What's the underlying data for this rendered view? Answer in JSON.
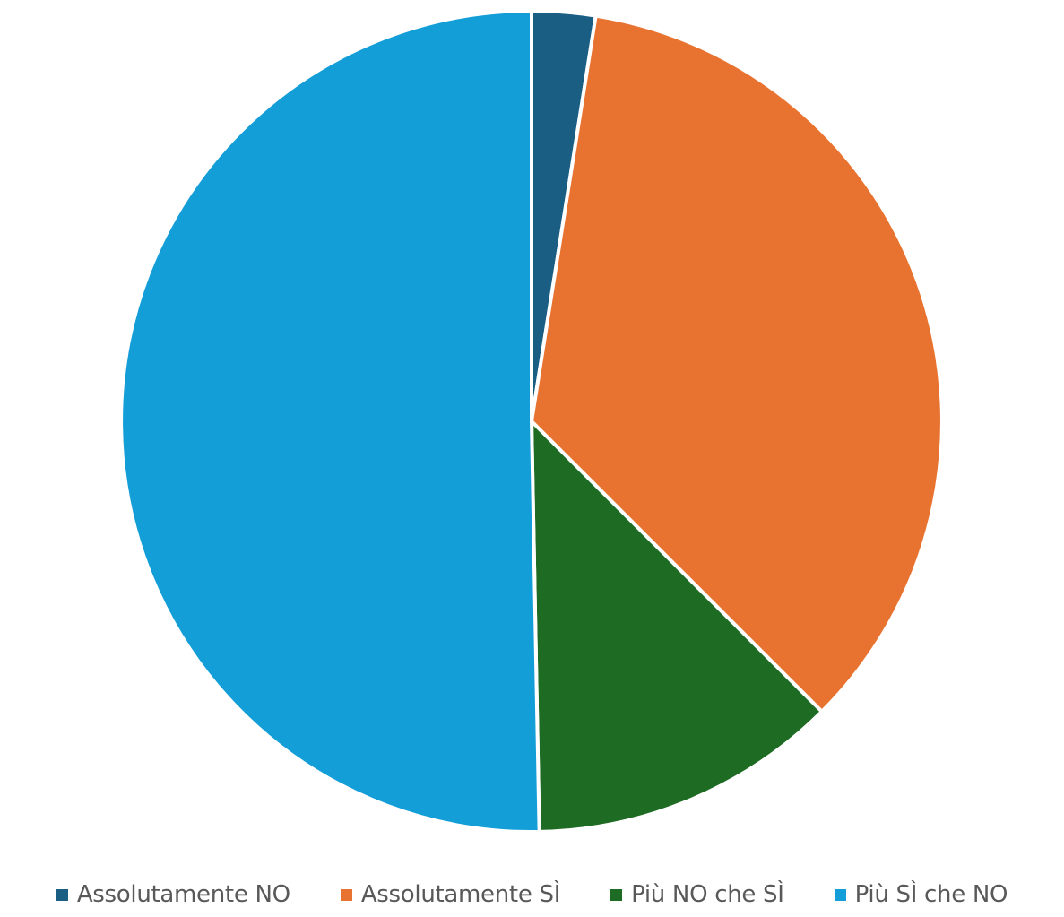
{
  "chart_data": {
    "type": "pie",
    "title": "",
    "legend_position": "bottom",
    "categories": [
      "Assolutamente NO",
      "Assolutamente SÌ",
      "Più NO che SÌ",
      "Più SÌ che NO"
    ],
    "values": [
      2.5,
      35.0,
      12.2,
      50.3
    ],
    "colors": [
      "#1a5e84",
      "#e87330",
      "#1e6b23",
      "#139ed8"
    ],
    "slice_border_color": "#ffffff",
    "start_angle_deg": 0,
    "direction": "clockwise"
  }
}
